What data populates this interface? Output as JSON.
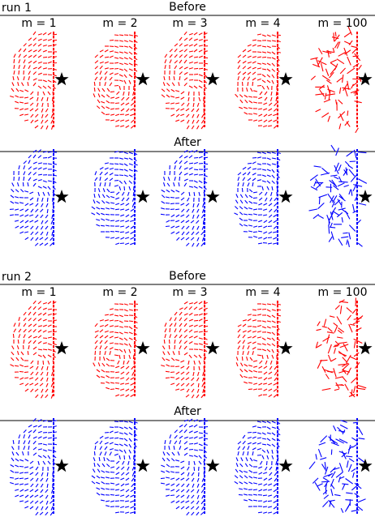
{
  "runs": [
    {
      "label": "run 1",
      "before": {
        "title": "Before"
      },
      "after": {
        "title": "After"
      },
      "panels": [
        "m = 1",
        "m = 2",
        "m = 3",
        "m = 4",
        "m = 100"
      ]
    },
    {
      "label": "run 2",
      "before": {
        "title": "Before"
      },
      "after": {
        "title": "After"
      },
      "panels": [
        "m = 1",
        "m = 2",
        "m = 3",
        "m = 4",
        "m = 100"
      ]
    }
  ]
}
